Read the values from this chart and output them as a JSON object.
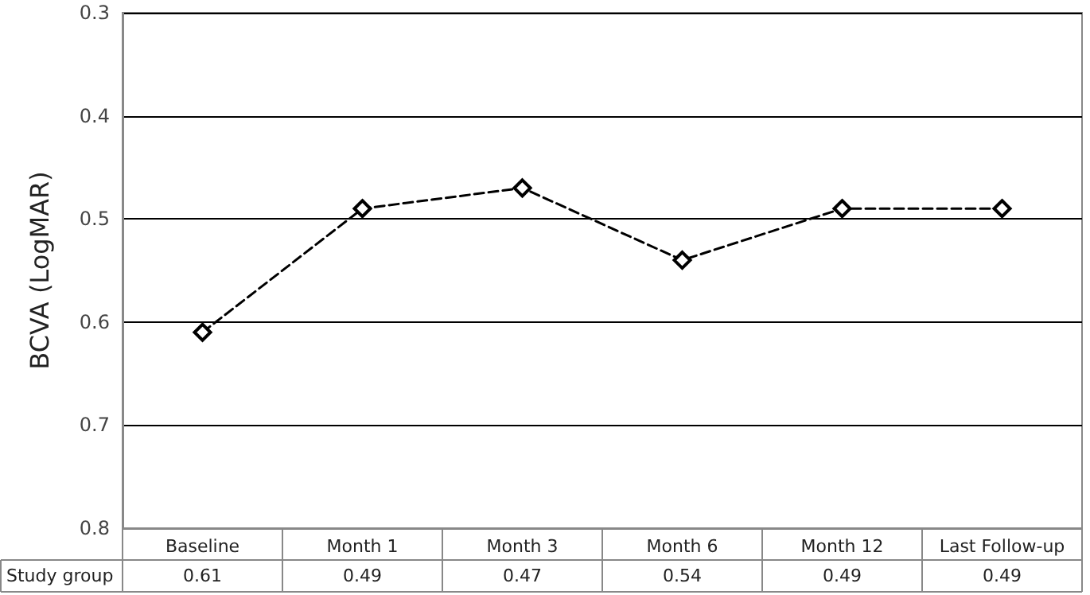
{
  "chart_data": {
    "type": "line",
    "ylabel": "BCVA (LogMAR)",
    "categories": [
      "Baseline",
      "Month 1",
      "Month 3",
      "Month 6",
      "Month 12",
      "Last Follow-up"
    ],
    "series": [
      {
        "name": "Study group",
        "color": "#000000",
        "values": [
          0.61,
          0.49,
          0.47,
          0.54,
          0.49,
          0.49
        ]
      }
    ],
    "ylim": [
      0.8,
      0.3
    ],
    "yticks": [
      0.3,
      0.4,
      0.5,
      0.6,
      0.7,
      0.8
    ],
    "grid": "y",
    "marker": "diamond",
    "line_style": "dashed",
    "data_labels": true,
    "legend": false
  }
}
